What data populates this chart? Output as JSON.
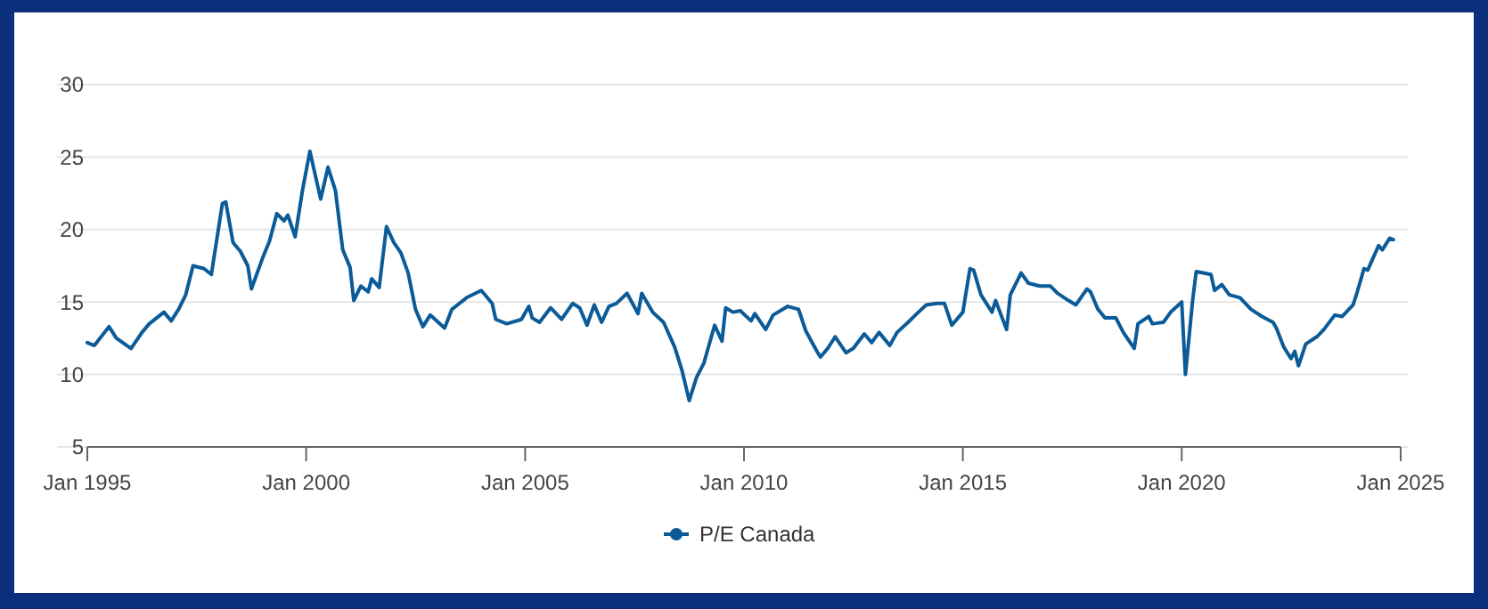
{
  "chart_data": {
    "type": "line",
    "xlim": [
      "1995-01",
      "2025-01"
    ],
    "ylim": [
      5,
      30
    ],
    "yticks": [
      5,
      10,
      15,
      20,
      25,
      30
    ],
    "xticks": [
      {
        "value": "1995-01",
        "label": "Jan 1995"
      },
      {
        "value": "2000-01",
        "label": "Jan 2000"
      },
      {
        "value": "2005-01",
        "label": "Jan 2005"
      },
      {
        "value": "2010-01",
        "label": "Jan 2010"
      },
      {
        "value": "2015-01",
        "label": "Jan 2015"
      },
      {
        "value": "2020-01",
        "label": "Jan 2020"
      },
      {
        "value": "2025-01",
        "label": "Jan 2025"
      }
    ],
    "grid": "y",
    "legend": "bottom",
    "line_style": "solid",
    "x": [
      "1995-01",
      "1995-03",
      "1995-07",
      "1995-09",
      "1996-01",
      "1996-04",
      "1996-06",
      "1996-10",
      "1996-12",
      "1997-02",
      "1997-04",
      "1997-06",
      "1997-09",
      "1997-11",
      "1998-02",
      "1998-03",
      "1998-05",
      "1998-07",
      "1998-09",
      "1998-10",
      "1999-01",
      "1999-03",
      "1999-05",
      "1999-07",
      "1999-08",
      "1999-10",
      "1999-12",
      "2000-02",
      "2000-05",
      "2000-07",
      "2000-09",
      "2000-11",
      "2001-01",
      "2001-02",
      "2001-04",
      "2001-06",
      "2001-07",
      "2001-09",
      "2001-11",
      "2002-01",
      "2002-03",
      "2002-05",
      "2002-07",
      "2002-09",
      "2002-11",
      "2003-03",
      "2003-05",
      "2003-09",
      "2004-01",
      "2004-04",
      "2004-05",
      "2004-08",
      "2004-12",
      "2005-02",
      "2005-03",
      "2005-05",
      "2005-08",
      "2005-11",
      "2006-02",
      "2006-04",
      "2006-06",
      "2006-08",
      "2006-10",
      "2006-12",
      "2007-02",
      "2007-05",
      "2007-08",
      "2007-09",
      "2007-12",
      "2008-03",
      "2008-06",
      "2008-08",
      "2008-10",
      "2008-12",
      "2009-02",
      "2009-05",
      "2009-07",
      "2009-08",
      "2009-10",
      "2009-12",
      "2010-03",
      "2010-04",
      "2010-07",
      "2010-09",
      "2011-01",
      "2011-04",
      "2011-06",
      "2011-09",
      "2011-10",
      "2011-12",
      "2012-02",
      "2012-05",
      "2012-07",
      "2012-10",
      "2012-12",
      "2013-02",
      "2013-05",
      "2013-07",
      "2013-10",
      "2013-12",
      "2014-03",
      "2014-06",
      "2014-08",
      "2014-10",
      "2015-01",
      "2015-03",
      "2015-04",
      "2015-06",
      "2015-09",
      "2015-10",
      "2016-01",
      "2016-02",
      "2016-05",
      "2016-07",
      "2016-10",
      "2017-01",
      "2017-03",
      "2017-06",
      "2017-08",
      "2017-11",
      "2017-12",
      "2018-02",
      "2018-04",
      "2018-07",
      "2018-09",
      "2018-12",
      "2019-01",
      "2019-04",
      "2019-05",
      "2019-08",
      "2019-10",
      "2020-01",
      "2020-02",
      "2020-04",
      "2020-05",
      "2020-09",
      "2020-10",
      "2020-12",
      "2021-02",
      "2021-05",
      "2021-08",
      "2021-11",
      "2022-02",
      "2022-03",
      "2022-05",
      "2022-07",
      "2022-08",
      "2022-09",
      "2022-11",
      "2023-02",
      "2023-04",
      "2023-07",
      "2023-09",
      "2023-12",
      "2024-01",
      "2024-03",
      "2024-04",
      "2024-07",
      "2024-08",
      "2024-10",
      "2024-11"
    ],
    "series": [
      {
        "name": "P/E Canada",
        "color": "#0b5b98",
        "values": [
          12.2,
          12.0,
          13.3,
          12.5,
          11.8,
          12.9,
          13.5,
          14.3,
          13.7,
          14.5,
          15.5,
          17.5,
          17.3,
          16.9,
          21.8,
          21.9,
          19.1,
          18.5,
          17.5,
          15.9,
          18.0,
          19.2,
          21.1,
          20.6,
          21.0,
          19.5,
          22.7,
          25.4,
          22.1,
          24.3,
          22.7,
          18.6,
          17.4,
          15.1,
          16.1,
          15.7,
          16.6,
          16.0,
          20.2,
          19.1,
          18.4,
          17.0,
          14.5,
          13.3,
          14.1,
          13.2,
          14.5,
          15.3,
          15.8,
          14.9,
          13.8,
          13.5,
          13.8,
          14.7,
          13.9,
          13.6,
          14.6,
          13.8,
          14.9,
          14.6,
          13.4,
          14.8,
          13.6,
          14.7,
          14.9,
          15.6,
          14.2,
          15.6,
          14.3,
          13.6,
          11.9,
          10.3,
          8.2,
          9.8,
          10.8,
          13.4,
          12.3,
          14.6,
          14.3,
          14.4,
          13.7,
          14.2,
          13.1,
          14.1,
          14.7,
          14.5,
          13.0,
          11.6,
          11.2,
          11.8,
          12.6,
          11.5,
          11.8,
          12.8,
          12.2,
          12.9,
          12.0,
          12.9,
          13.6,
          14.1,
          14.8,
          14.9,
          14.9,
          13.4,
          14.3,
          17.3,
          17.2,
          15.5,
          14.3,
          15.1,
          13.1,
          15.5,
          17.0,
          16.3,
          16.1,
          16.1,
          15.6,
          15.1,
          14.8,
          15.9,
          15.7,
          14.5,
          13.9,
          13.9,
          12.9,
          11.8,
          13.5,
          14.0,
          13.5,
          13.6,
          14.3,
          15.0,
          10.0,
          15.1,
          17.1,
          16.9,
          15.8,
          16.2,
          15.5,
          15.3,
          14.5,
          14.0,
          13.6,
          13.2,
          11.9,
          11.1,
          11.6,
          10.6,
          12.1,
          12.6,
          13.1,
          14.1,
          14.0,
          14.8,
          15.6,
          17.3,
          17.2,
          18.9,
          18.6,
          19.4,
          19.3
        ]
      }
    ]
  }
}
